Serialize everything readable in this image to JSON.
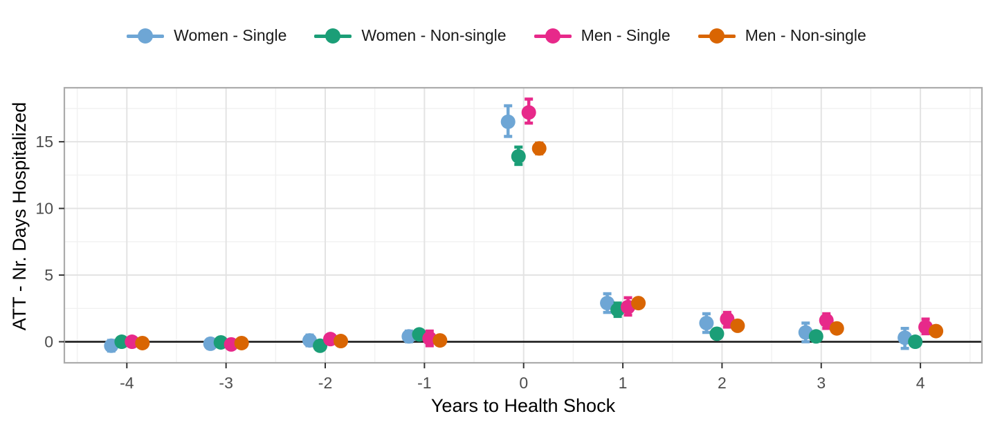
{
  "legend": {
    "position": "top",
    "items": [
      {
        "label": "Women - Single",
        "color": "#6EA6D5"
      },
      {
        "label": "Women - Non-single",
        "color": "#1B9E77"
      },
      {
        "label": "Men - Single",
        "color": "#E7298A"
      },
      {
        "label": "Men - Non-single",
        "color": "#D96502"
      }
    ]
  },
  "axes": {
    "x": {
      "label": "Years to Health Shock"
    },
    "y": {
      "label": "ATT - Nr. Days Hospitalized"
    }
  },
  "chart_data": {
    "type": "scatter",
    "subtype": "pointrange-event-study",
    "title": "",
    "xlabel": "Years to Health Shock",
    "ylabel": "ATT - Nr. Days Hospitalized",
    "x": [
      -4,
      -3,
      -2,
      -1,
      0,
      1,
      2,
      3,
      4
    ],
    "series": [
      {
        "name": "Women - Single",
        "color": "#6EA6D5",
        "values": [
          -0.3,
          -0.15,
          0.1,
          0.4,
          16.5,
          2.9,
          1.4,
          0.7,
          0.3
        ],
        "ci_low": [
          -0.7,
          -0.5,
          -0.3,
          0.0,
          15.4,
          2.2,
          0.7,
          0.0,
          -0.5
        ],
        "ci_high": [
          0.1,
          0.2,
          0.5,
          0.8,
          17.7,
          3.6,
          2.1,
          1.4,
          1.0
        ]
      },
      {
        "name": "Women - Non-single",
        "color": "#1B9E77",
        "values": [
          0.0,
          -0.05,
          -0.3,
          0.55,
          13.9,
          2.4,
          0.6,
          0.4,
          0.0
        ],
        "ci_low": [
          -0.25,
          -0.3,
          -0.55,
          0.3,
          13.3,
          1.9,
          0.25,
          0.1,
          -0.3
        ],
        "ci_high": [
          0.25,
          0.2,
          -0.05,
          0.8,
          14.6,
          2.9,
          0.95,
          0.7,
          0.3
        ]
      },
      {
        "name": "Men - Single",
        "color": "#E7298A",
        "values": [
          0.0,
          -0.2,
          0.2,
          0.25,
          17.2,
          2.6,
          1.7,
          1.6,
          1.1
        ],
        "ci_low": [
          -0.3,
          -0.5,
          -0.1,
          -0.3,
          16.4,
          2.0,
          1.1,
          1.0,
          0.6
        ],
        "ci_high": [
          0.3,
          0.1,
          0.5,
          0.8,
          18.2,
          3.3,
          2.2,
          2.1,
          1.7
        ]
      },
      {
        "name": "Men - Non-single",
        "color": "#D96502",
        "values": [
          -0.1,
          -0.1,
          0.05,
          0.1,
          14.5,
          2.9,
          1.2,
          1.0,
          0.8
        ],
        "ci_low": [
          -0.3,
          -0.3,
          -0.15,
          -0.1,
          14.1,
          2.6,
          0.9,
          0.7,
          0.5
        ],
        "ci_high": [
          0.1,
          0.1,
          0.25,
          0.3,
          14.9,
          3.2,
          1.5,
          1.3,
          1.1
        ]
      }
    ],
    "xticks": [
      -4,
      -3,
      -2,
      -1,
      0,
      1,
      2,
      3,
      4
    ],
    "yticks": [
      0,
      5,
      10,
      15
    ],
    "minor_xticks": [
      -4.5,
      -3.5,
      -2.5,
      -1.5,
      -0.5,
      0.5,
      1.5,
      2.5,
      3.5,
      4.5
    ],
    "minor_yticks": [
      2.5,
      7.5,
      12.5,
      17.5
    ],
    "xlim": [
      -4.63,
      4.62
    ],
    "ylim": [
      -1.58,
      19.05
    ],
    "grid": "major+minor",
    "zero_line": true,
    "legend_position": "top",
    "dodge_offsets": [
      -0.157,
      -0.052,
      0.052,
      0.157
    ],
    "colors": {
      "major_grid": "#E3E3E3",
      "minor_grid": "#F1F1F1",
      "panel_border": "#ABABAB",
      "zero_line": "#1A1A1A",
      "tick_mark": "#333333",
      "tick_label": "#4D4D4D",
      "axis_title": "#000000"
    }
  }
}
